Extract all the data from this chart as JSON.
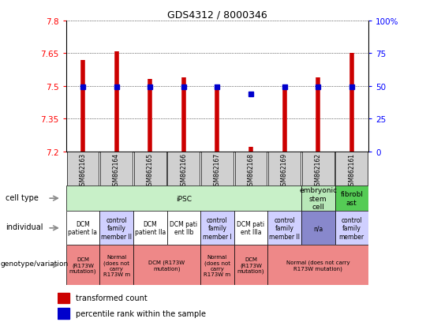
{
  "title": "GDS4312 / 8000346",
  "samples": [
    "GSM862163",
    "GSM862164",
    "GSM862165",
    "GSM862166",
    "GSM862167",
    "GSM862168",
    "GSM862169",
    "GSM862162",
    "GSM862161"
  ],
  "bar_values": [
    7.62,
    7.66,
    7.53,
    7.54,
    7.5,
    7.22,
    7.49,
    7.54,
    7.65
  ],
  "bar_base": 7.2,
  "dot_values": [
    7.497,
    7.497,
    7.497,
    7.497,
    7.497,
    7.462,
    7.497,
    7.497,
    7.497
  ],
  "ylim": [
    7.2,
    7.8
  ],
  "yticks_left": [
    7.2,
    7.35,
    7.5,
    7.65,
    7.8
  ],
  "yticks_right": [
    0,
    25,
    50,
    75,
    100
  ],
  "bar_color": "#cc0000",
  "dot_color": "#0000cc",
  "sample_box_color": "#d0d0d0",
  "ct_groups": [
    {
      "text": "iPSC",
      "start": 0,
      "end": 7,
      "color": "#c8f0c8"
    },
    {
      "text": "embryonic\nstem\ncell",
      "start": 7,
      "end": 8,
      "color": "#b8e8b8"
    },
    {
      "text": "fibrobl\nast",
      "start": 8,
      "end": 9,
      "color": "#55cc55"
    }
  ],
  "ind_cells": [
    {
      "text": "DCM\npatient Ia",
      "color": "#ffffff"
    },
    {
      "text": "control\nfamily\nmember II",
      "color": "#d0d0ff"
    },
    {
      "text": "DCM\npatient IIa",
      "color": "#ffffff"
    },
    {
      "text": "DCM pati\nent IIb",
      "color": "#ffffff"
    },
    {
      "text": "control\nfamily\nmember I",
      "color": "#d0d0ff"
    },
    {
      "text": "DCM pati\nent IIIa",
      "color": "#ffffff"
    },
    {
      "text": "control\nfamily\nmember II",
      "color": "#d0d0ff"
    },
    {
      "text": "n/a",
      "color": "#8888cc"
    },
    {
      "text": "control\nfamily\nmember",
      "color": "#d0d0ff"
    }
  ],
  "gen_groups": [
    {
      "text": "DCM\n(R173W\nmutation)",
      "start": 0,
      "end": 1,
      "color": "#ee8888"
    },
    {
      "text": "Normal\n(does not\ncarry\nR173W m",
      "start": 1,
      "end": 2,
      "color": "#ee8888"
    },
    {
      "text": "DCM (R173W\nmutation)",
      "start": 2,
      "end": 4,
      "color": "#ee8888"
    },
    {
      "text": "Normal\n(does not\ncarry\nR173W m",
      "start": 4,
      "end": 5,
      "color": "#ee8888"
    },
    {
      "text": "DCM\n(R173W\nmutation)",
      "start": 5,
      "end": 6,
      "color": "#ee8888"
    },
    {
      "text": "Normal (does not carry\nR173W mutation)",
      "start": 6,
      "end": 9,
      "color": "#ee8888"
    }
  ],
  "row_labels": [
    "cell type",
    "individual",
    "genotype/variation"
  ],
  "legend_items": [
    {
      "color": "#cc0000",
      "text": "transformed count"
    },
    {
      "color": "#0000cc",
      "text": "percentile rank within the sample"
    }
  ]
}
